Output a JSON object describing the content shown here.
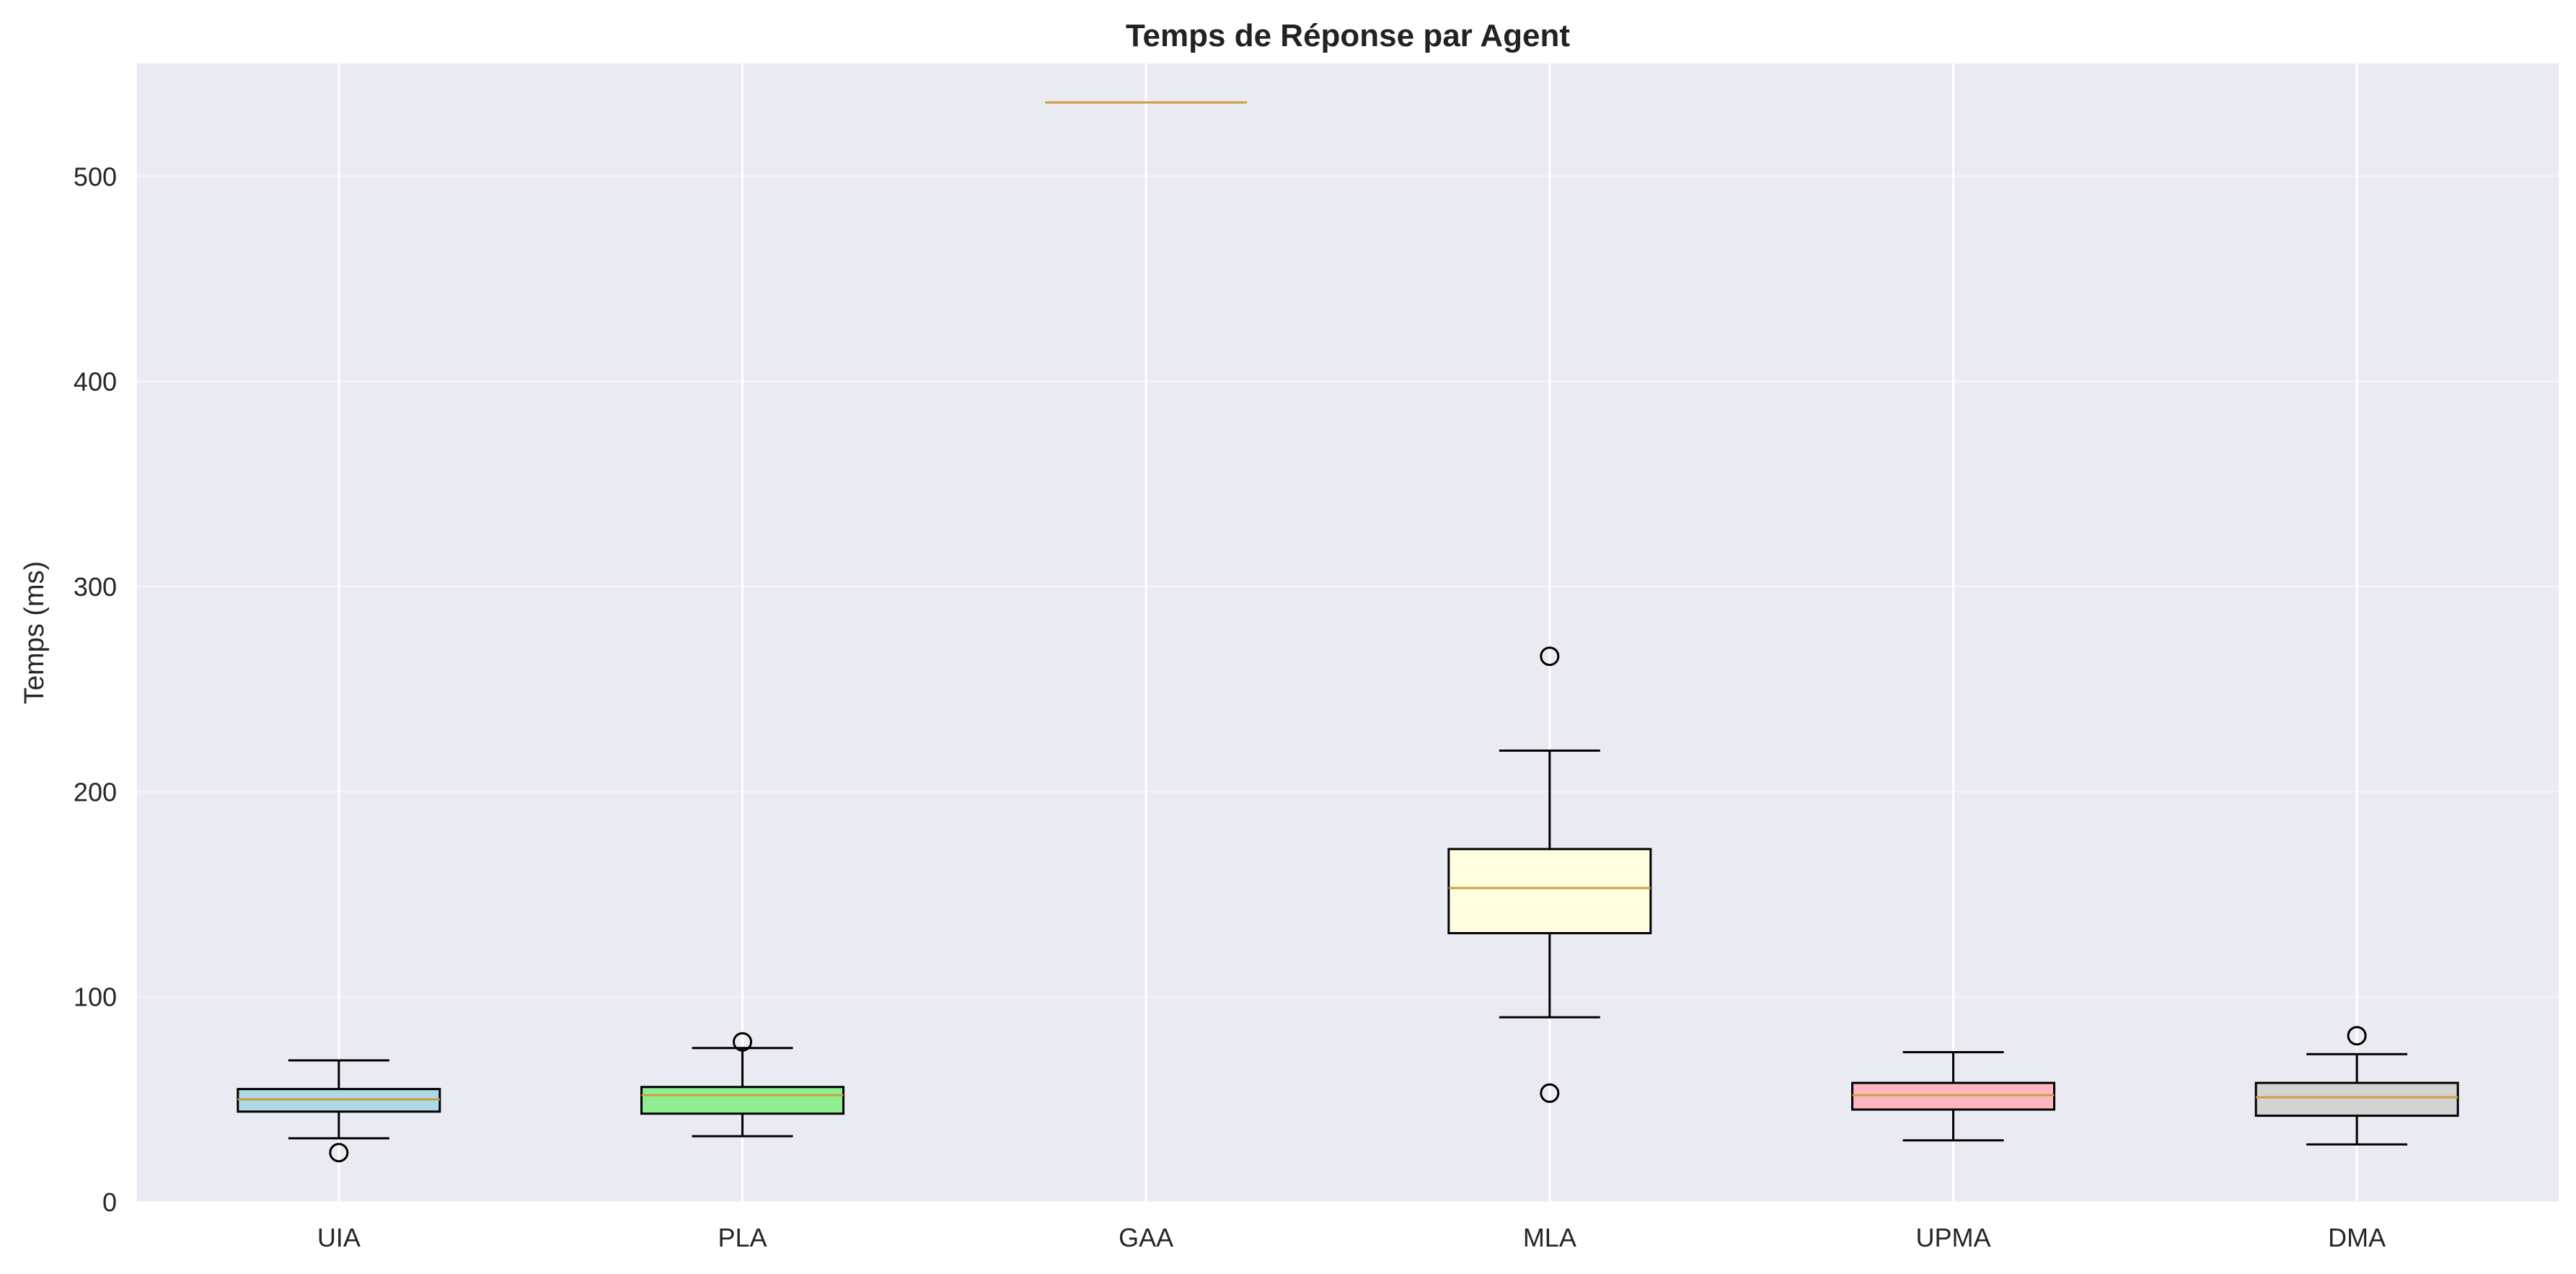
{
  "chart_data": {
    "type": "box",
    "title": "Temps de Réponse par Agent",
    "xlabel": "",
    "ylabel": "Temps (ms)",
    "ylim": [
      0,
      555
    ],
    "yticks": [
      0,
      100,
      200,
      300,
      400,
      500
    ],
    "grid": true,
    "categories": [
      "UIA",
      "PLA",
      "GAA",
      "MLA",
      "UPMA",
      "DMA"
    ],
    "boxes": [
      {
        "name": "UIA",
        "color": "#add8e6",
        "whisker_low": 31,
        "q1": 44,
        "median": 50,
        "q3": 55,
        "whisker_high": 69,
        "outliers": [
          24
        ]
      },
      {
        "name": "PLA",
        "color": "#90ee90",
        "whisker_low": 32,
        "q1": 43,
        "median": 52,
        "q3": 56,
        "whisker_high": 75,
        "outliers": [
          78
        ]
      },
      {
        "name": "GAA",
        "color": "#f5deb3",
        "whisker_low": 536,
        "q1": 536,
        "median": 536,
        "q3": 536,
        "whisker_high": 536,
        "outliers": []
      },
      {
        "name": "MLA",
        "color": "#ffffe0",
        "whisker_low": 90,
        "q1": 131,
        "median": 153,
        "q3": 172,
        "whisker_high": 220,
        "outliers": [
          53,
          266
        ]
      },
      {
        "name": "UPMA",
        "color": "#ffb6c1",
        "whisker_low": 30,
        "q1": 45,
        "median": 52,
        "q3": 58,
        "whisker_high": 73,
        "outliers": []
      },
      {
        "name": "DMA",
        "color": "#d3d3d3",
        "whisker_low": 28,
        "q1": 42,
        "median": 51,
        "q3": 58,
        "whisker_high": 72,
        "outliers": [
          81
        ]
      }
    ],
    "colors": {
      "plot_background": "#eaeaf2",
      "grid": "#ffffff",
      "median_line": "#c8a040",
      "box_edge": "#000000"
    }
  }
}
